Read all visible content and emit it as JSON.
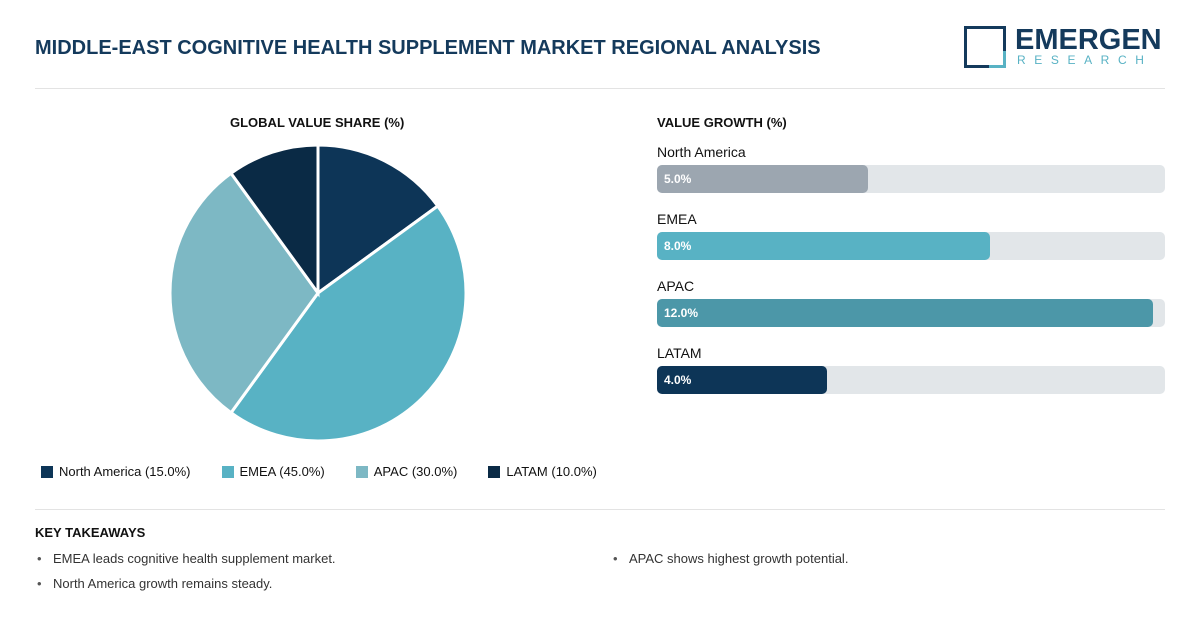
{
  "title": "MIDDLE-EAST COGNITIVE HEALTH SUPPLEMENT MARKET REGIONAL ANALYSIS",
  "logo": {
    "line1": "EMERGEN",
    "line2": "RESEARCH"
  },
  "chart_data": [
    {
      "type": "pie",
      "title": "GLOBAL VALUE SHARE (%)",
      "categories": [
        "North America",
        "EMEA",
        "APAC",
        "LATAM"
      ],
      "values": [
        15.0,
        45.0,
        30.0,
        10.0
      ],
      "colors": [
        "#0d3557",
        "#58b2c4",
        "#7db8c4",
        "#0a2a45"
      ],
      "legend_labels": [
        "North America (15.0%)",
        "EMEA (45.0%)",
        "APAC (30.0%)",
        "LATAM (10.0%)"
      ],
      "legend": "bottom"
    },
    {
      "type": "bar",
      "orientation": "horizontal",
      "title": "VALUE GROWTH (%)",
      "categories": [
        "North America",
        "EMEA",
        "APAC",
        "LATAM"
      ],
      "values": [
        5.0,
        8.0,
        12.0,
        4.0
      ],
      "labels": [
        "5.0%",
        "8.0%",
        "12.0%",
        "4.0%"
      ],
      "fill_percent": [
        41.5,
        65.6,
        97.6,
        33.5
      ],
      "colors": [
        "#9ca6b0",
        "#58b2c4",
        "#4c97a8",
        "#0d3557"
      ]
    }
  ],
  "takeaways": {
    "heading": "KEY TAKEAWAYS",
    "items": [
      "EMEA leads cognitive health supplement market.",
      "North America growth remains steady.",
      "APAC shows highest growth potential."
    ]
  }
}
